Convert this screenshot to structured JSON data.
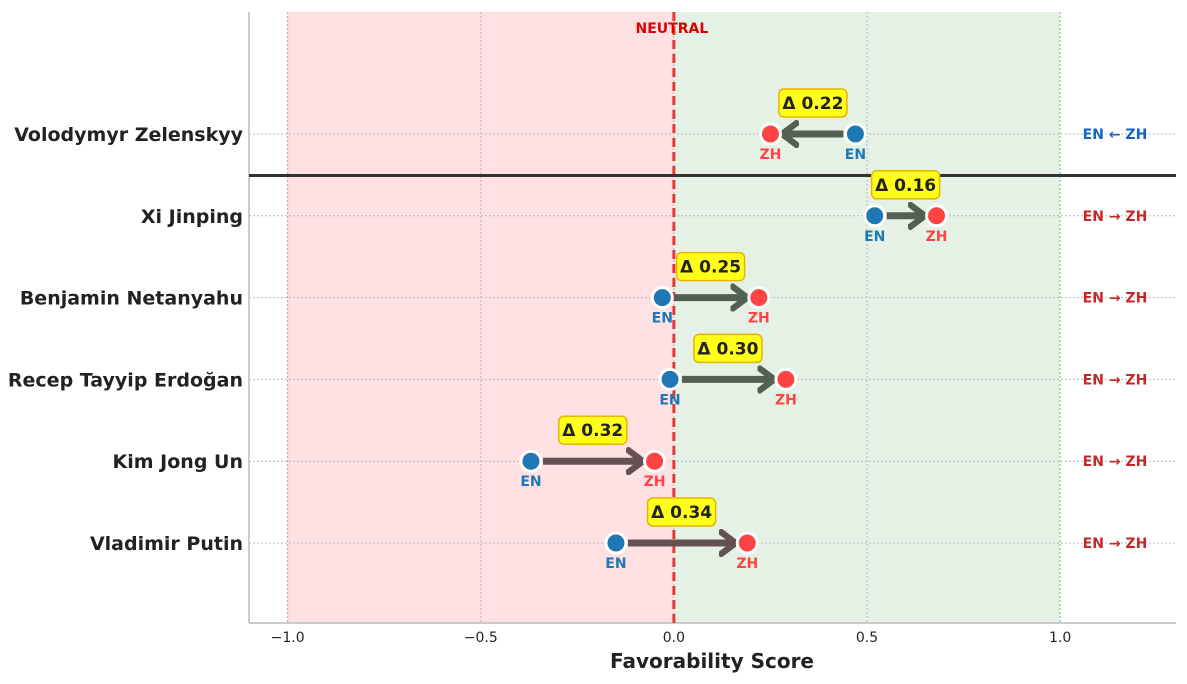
{
  "chart_data": {
    "type": "dumbbell",
    "title": "",
    "xlabel": "Favorability Score",
    "xlim": [
      -1.1,
      1.3
    ],
    "xticks": [
      -1.0,
      -0.5,
      0.0,
      0.5,
      1.0
    ],
    "xtick_labels": [
      "−1.0",
      "−0.5",
      "0.0",
      "0.5",
      "1.0"
    ],
    "grid": true,
    "regions": [
      {
        "from": -1.0,
        "to": 0.0,
        "color": "#ffe1e4"
      },
      {
        "from": 0.0,
        "to": 1.0,
        "color": "#e5f1e5"
      }
    ],
    "neutral_line": {
      "x": 0.0,
      "label": "NEUTRAL",
      "color": "#e53935"
    },
    "point_labels": {
      "en": "EN",
      "zh": "ZH"
    },
    "colors": {
      "en": "#1f77b4",
      "zh": "#ff4444",
      "arrow": "#4b5a4b",
      "arrow_neg": "#5d4a4a",
      "delta_bg": "#ffff1a",
      "delta_border": "#e8b400",
      "dir_up": "#1565c0",
      "dir_down": "#c62828"
    },
    "items": [
      {
        "name": "Volodymyr Zelenskyy",
        "en": 0.47,
        "zh": 0.25,
        "delta": "Δ 0.22",
        "direction": "EN ← ZH",
        "dir_color": "#1565c0"
      },
      {
        "name": "Xi Jinping",
        "en": 0.52,
        "zh": 0.68,
        "delta": "Δ 0.16",
        "direction": "EN → ZH",
        "dir_color": "#c62828"
      },
      {
        "name": "Benjamin Netanyahu",
        "en": -0.03,
        "zh": 0.22,
        "delta": "Δ 0.25",
        "direction": "EN → ZH",
        "dir_color": "#c62828"
      },
      {
        "name": "Recep Tayyip Erdoğan",
        "en": -0.01,
        "zh": 0.29,
        "delta": "Δ 0.30",
        "direction": "EN → ZH",
        "dir_color": "#c62828"
      },
      {
        "name": "Kim Jong Un",
        "en": -0.37,
        "zh": -0.05,
        "delta": "Δ 0.32",
        "direction": "EN → ZH",
        "dir_color": "#c62828"
      },
      {
        "name": "Vladimir Putin",
        "en": -0.15,
        "zh": 0.19,
        "delta": "Δ 0.34",
        "direction": "EN → ZH",
        "dir_color": "#c62828"
      }
    ]
  }
}
